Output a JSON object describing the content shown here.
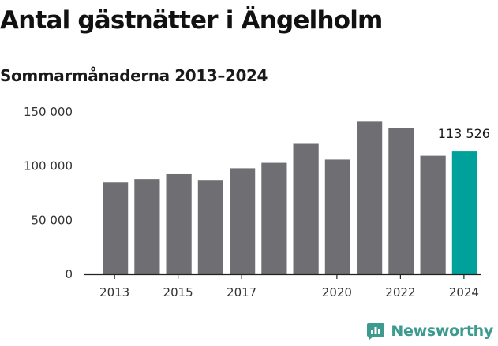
{
  "colors": {
    "bar": "#6e6e73",
    "highlight": "#00a19a",
    "axis": "#222222",
    "brand": "#3d9a8f"
  },
  "brand": {
    "name": "Newsworthy",
    "icon": "newsworthy-logo-icon"
  },
  "chart_data": {
    "type": "bar",
    "title": "Antal gästnätter i Ängelholm",
    "subtitle": "Sommarmånaderna 2013–2024",
    "xlabel": "",
    "ylabel": "",
    "categories": [
      "2013",
      "2014",
      "2015",
      "2016",
      "2017",
      "2018",
      "2019",
      "2020",
      "2021",
      "2022",
      "2023",
      "2024"
    ],
    "values": [
      85000,
      88000,
      92500,
      86500,
      98000,
      103000,
      120500,
      106000,
      141000,
      135000,
      109500,
      113526
    ],
    "highlight_index": 11,
    "x_tick_labels": [
      "2013",
      "",
      "2015",
      "",
      "2017",
      "",
      "",
      "2020",
      "",
      "2022",
      "",
      "2024"
    ],
    "y_ticks": [
      0,
      50000,
      100000,
      150000
    ],
    "y_tick_labels": [
      "0",
      "50 000",
      "100 000",
      "150 000"
    ],
    "ylim": [
      0,
      150000
    ],
    "annotations": [
      {
        "category": "2024",
        "text": "113 526"
      }
    ],
    "grid": false,
    "legend": "none"
  }
}
